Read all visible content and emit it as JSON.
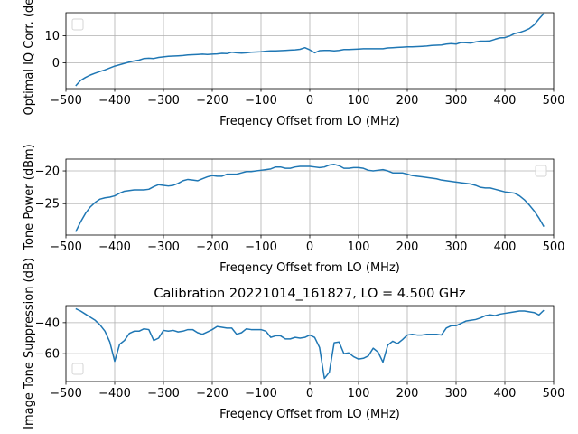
{
  "chart_data": [
    {
      "type": "line",
      "title": "",
      "xlabel": "Freqency Offset from LO (MHz)",
      "ylabel": "Optimal IQ Corr. (deg)",
      "xlim": [
        -500,
        500
      ],
      "ylim": [
        -9.5,
        18.5
      ],
      "xticks": [
        -500,
        -400,
        -300,
        -200,
        -100,
        0,
        100,
        200,
        300,
        400,
        500
      ],
      "yticks": [
        0,
        10
      ],
      "grid": true,
      "legend": "top-left, empty",
      "color": "#1f77b4",
      "series": [
        {
          "x": [
            -480,
            -470,
            -460,
            -450,
            -440,
            -430,
            -420,
            -410,
            -400,
            -390,
            -380,
            -370,
            -360,
            -350,
            -340,
            -330,
            -320,
            -310,
            -300,
            -290,
            -280,
            -270,
            -260,
            -250,
            -240,
            -230,
            -220,
            -210,
            -200,
            -190,
            -180,
            -170,
            -160,
            -150,
            -140,
            -130,
            -120,
            -110,
            -100,
            -90,
            -80,
            -70,
            -60,
            -50,
            -40,
            -30,
            -20,
            -10,
            0,
            10,
            20,
            30,
            40,
            50,
            60,
            70,
            80,
            90,
            100,
            110,
            120,
            130,
            140,
            150,
            160,
            170,
            180,
            190,
            200,
            210,
            220,
            230,
            240,
            250,
            260,
            270,
            280,
            290,
            300,
            310,
            320,
            330,
            340,
            350,
            360,
            370,
            380,
            390,
            400,
            410,
            420,
            430,
            440,
            450,
            460,
            470,
            480
          ],
          "y": [
            -8.5,
            -6.5,
            -5.4,
            -4.5,
            -3.8,
            -3.2,
            -2.6,
            -1.9,
            -1.2,
            -0.7,
            -0.2,
            0.3,
            0.7,
            1.0,
            1.6,
            1.7,
            1.6,
            2.0,
            2.2,
            2.4,
            2.5,
            2.6,
            2.7,
            2.9,
            3.0,
            3.1,
            3.2,
            3.1,
            3.2,
            3.3,
            3.5,
            3.4,
            3.9,
            3.7,
            3.6,
            3.7,
            3.9,
            4.0,
            4.1,
            4.3,
            4.4,
            4.4,
            4.5,
            4.6,
            4.7,
            4.8,
            5.0,
            5.6,
            4.8,
            3.7,
            4.5,
            4.6,
            4.6,
            4.4,
            4.6,
            4.9,
            4.9,
            5.0,
            5.1,
            5.2,
            5.2,
            5.2,
            5.2,
            5.2,
            5.5,
            5.6,
            5.7,
            5.8,
            5.9,
            5.9,
            6.0,
            6.1,
            6.2,
            6.4,
            6.5,
            6.6,
            6.9,
            7.1,
            6.9,
            7.5,
            7.4,
            7.3,
            7.7,
            8.0,
            8.0,
            8.1,
            8.7,
            9.2,
            9.3,
            9.9,
            10.8,
            11.2,
            11.8,
            12.6,
            14.0,
            16.2,
            18.2
          ]
        }
      ]
    },
    {
      "type": "line",
      "title": "",
      "xlabel": "Freqency Offset from LO (MHz)",
      "ylabel": "Tone Power (dBm)",
      "xlim": [
        -500,
        500
      ],
      "ylim": [
        -29.8,
        -18.2
      ],
      "xticks": [
        -500,
        -400,
        -300,
        -200,
        -100,
        0,
        100,
        200,
        300,
        400,
        500
      ],
      "yticks": [
        -25,
        -20
      ],
      "grid": true,
      "legend": "top-right, empty",
      "color": "#1f77b4",
      "series": [
        {
          "x": [
            -480,
            -470,
            -460,
            -450,
            -440,
            -430,
            -420,
            -410,
            -400,
            -390,
            -380,
            -370,
            -360,
            -350,
            -340,
            -330,
            -320,
            -310,
            -300,
            -290,
            -280,
            -270,
            -260,
            -250,
            -240,
            -230,
            -220,
            -210,
            -200,
            -190,
            -180,
            -170,
            -160,
            -150,
            -140,
            -130,
            -120,
            -110,
            -100,
            -90,
            -80,
            -70,
            -60,
            -50,
            -40,
            -30,
            -20,
            -10,
            0,
            10,
            20,
            30,
            40,
            50,
            60,
            70,
            80,
            90,
            100,
            110,
            120,
            130,
            140,
            150,
            160,
            170,
            180,
            190,
            200,
            210,
            220,
            230,
            240,
            250,
            260,
            270,
            280,
            290,
            300,
            310,
            320,
            330,
            340,
            350,
            360,
            370,
            380,
            390,
            400,
            410,
            420,
            430,
            440,
            450,
            460,
            470,
            480
          ],
          "y": [
            -29.3,
            -27.8,
            -26.5,
            -25.5,
            -24.8,
            -24.3,
            -24.1,
            -24.0,
            -23.8,
            -23.4,
            -23.1,
            -23.0,
            -22.9,
            -22.9,
            -22.9,
            -22.8,
            -22.4,
            -22.1,
            -22.2,
            -22.3,
            -22.2,
            -21.9,
            -21.5,
            -21.3,
            -21.4,
            -21.5,
            -21.2,
            -20.9,
            -20.7,
            -20.8,
            -20.8,
            -20.5,
            -20.5,
            -20.5,
            -20.3,
            -20.1,
            -20.1,
            -20.0,
            -19.9,
            -19.8,
            -19.7,
            -19.4,
            -19.4,
            -19.6,
            -19.6,
            -19.4,
            -19.3,
            -19.3,
            -19.3,
            -19.4,
            -19.5,
            -19.4,
            -19.1,
            -19.0,
            -19.2,
            -19.6,
            -19.6,
            -19.5,
            -19.5,
            -19.6,
            -19.9,
            -20.0,
            -19.9,
            -19.8,
            -20.0,
            -20.3,
            -20.3,
            -20.3,
            -20.5,
            -20.7,
            -20.8,
            -20.9,
            -21.0,
            -21.1,
            -21.2,
            -21.4,
            -21.5,
            -21.6,
            -21.7,
            -21.8,
            -21.9,
            -22.0,
            -22.2,
            -22.5,
            -22.6,
            -22.6,
            -22.8,
            -23.0,
            -23.2,
            -23.3,
            -23.4,
            -23.8,
            -24.4,
            -25.2,
            -26.1,
            -27.2,
            -28.5
          ]
        }
      ]
    },
    {
      "type": "line",
      "title": "Calibration 20221014_161827, LO = 4.500 GHz",
      "xlabel": "Freqency Offset from LO (MHz)",
      "ylabel": "Image Tone Suppression (dB)",
      "xlim": [
        -500,
        500
      ],
      "ylim": [
        -78,
        -29
      ],
      "xticks": [
        -500,
        -400,
        -300,
        -200,
        -100,
        0,
        100,
        200,
        300,
        400,
        500
      ],
      "yticks": [
        -60,
        -40
      ],
      "grid": true,
      "legend": "bottom-left, empty",
      "color": "#1f77b4",
      "series": [
        {
          "x": [
            -480,
            -470,
            -460,
            -450,
            -440,
            -430,
            -420,
            -410,
            -400,
            -390,
            -380,
            -370,
            -360,
            -350,
            -340,
            -330,
            -320,
            -310,
            -300,
            -290,
            -280,
            -270,
            -260,
            -250,
            -240,
            -230,
            -220,
            -210,
            -200,
            -190,
            -180,
            -170,
            -160,
            -150,
            -140,
            -130,
            -120,
            -110,
            -100,
            -90,
            -80,
            -70,
            -60,
            -50,
            -40,
            -30,
            -20,
            -10,
            0,
            10,
            20,
            30,
            40,
            50,
            60,
            70,
            80,
            90,
            100,
            110,
            120,
            130,
            140,
            150,
            160,
            170,
            180,
            190,
            200,
            210,
            220,
            230,
            240,
            250,
            260,
            270,
            280,
            290,
            300,
            310,
            320,
            330,
            340,
            350,
            360,
            370,
            380,
            390,
            400,
            410,
            420,
            430,
            440,
            450,
            460,
            470,
            480
          ],
          "y": [
            -31.0,
            -32.5,
            -34.5,
            -36.5,
            -38.5,
            -41.5,
            -45.5,
            -52.5,
            -65.0,
            -54.0,
            -51.5,
            -47.0,
            -45.5,
            -45.5,
            -44.0,
            -44.5,
            -51.5,
            -50.0,
            -45.0,
            -45.5,
            -45.0,
            -46.0,
            -45.5,
            -44.5,
            -44.5,
            -46.5,
            -47.5,
            -46.0,
            -44.5,
            -42.5,
            -43.0,
            -43.5,
            -43.5,
            -47.5,
            -46.5,
            -44.0,
            -44.5,
            -44.5,
            -44.5,
            -45.5,
            -49.5,
            -48.5,
            -48.5,
            -50.5,
            -50.5,
            -49.5,
            -50.0,
            -49.5,
            -48.0,
            -49.5,
            -56.0,
            -76.0,
            -72.0,
            -53.0,
            -52.5,
            -60.0,
            -59.5,
            -62.0,
            -63.5,
            -63.0,
            -61.5,
            -56.5,
            -59.0,
            -65.5,
            -54.5,
            -52.0,
            -53.5,
            -51.0,
            -48.0,
            -47.5,
            -48.0,
            -48.0,
            -47.5,
            -47.5,
            -47.5,
            -48.0,
            -43.5,
            -42.0,
            -42.0,
            -40.5,
            -39.0,
            -38.5,
            -38.0,
            -37.0,
            -35.5,
            -35.0,
            -35.5,
            -34.5,
            -34.0,
            -33.5,
            -33.0,
            -32.5,
            -32.5,
            -33.0,
            -33.5,
            -35.0,
            -32.0
          ]
        }
      ]
    }
  ]
}
